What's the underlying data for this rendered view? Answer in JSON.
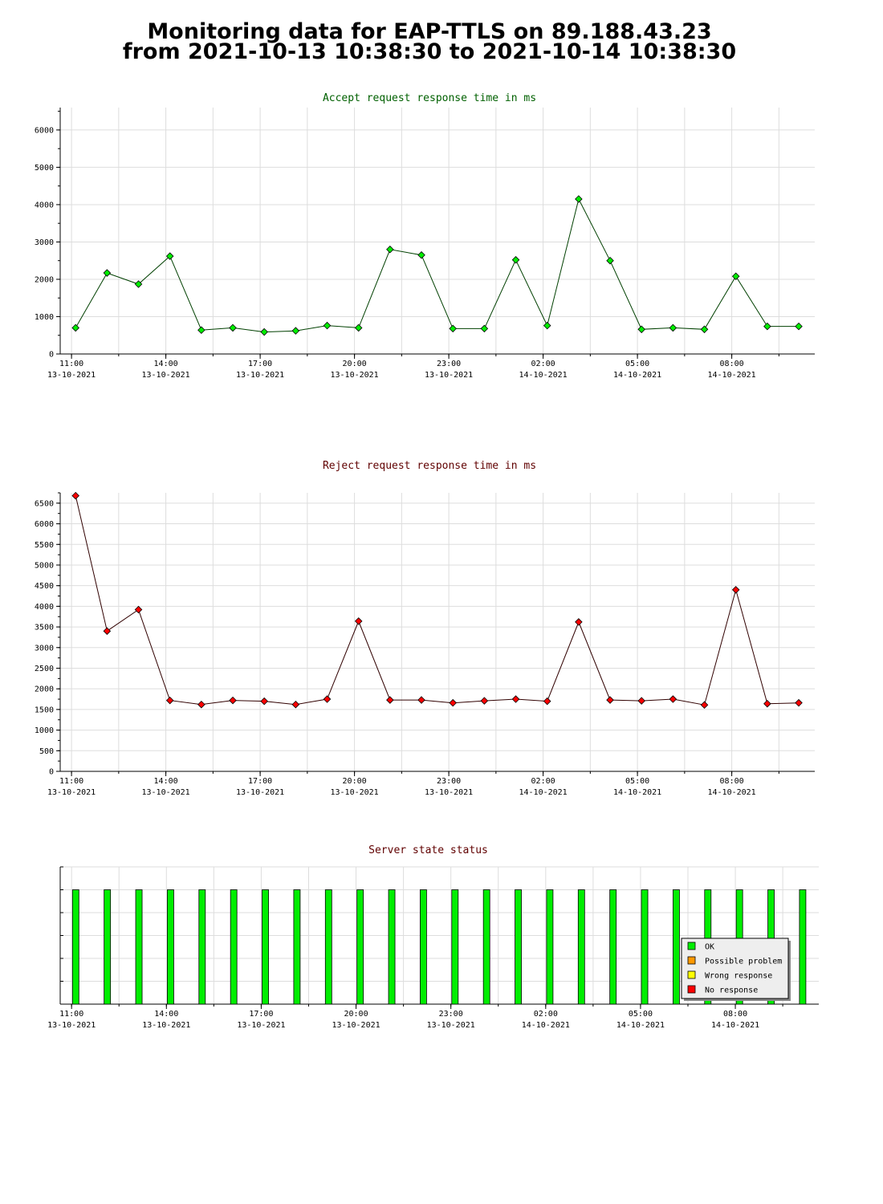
{
  "page": {
    "title_line1": "Monitoring data for EAP-TTLS on 89.188.43.23",
    "title_line2": "from 2021-10-13 10:38:30 to 2021-10-14 10:38:30"
  },
  "colors": {
    "accept_title": "#006000",
    "accept_line": "#004000",
    "accept_marker": "#00ee00",
    "reject_title": "#600000",
    "reject_line": "#300000",
    "reject_marker": "#ff0000",
    "status_title": "#600000",
    "ok": "#00ee00",
    "possible_problem": "#ff9900",
    "wrong_response": "#ffff00",
    "no_response": "#ff0000",
    "grid": "#dddddd"
  },
  "x_axis_ticks": [
    {
      "t": 11,
      "time": "11:00",
      "date": "13-10-2021"
    },
    {
      "t": 14,
      "time": "14:00",
      "date": "13-10-2021"
    },
    {
      "t": 17,
      "time": "17:00",
      "date": "13-10-2021"
    },
    {
      "t": 20,
      "time": "20:00",
      "date": "13-10-2021"
    },
    {
      "t": 23,
      "time": "23:00",
      "date": "13-10-2021"
    },
    {
      "t": 26,
      "time": "02:00",
      "date": "14-10-2021"
    },
    {
      "t": 29,
      "time": "05:00",
      "date": "14-10-2021"
    },
    {
      "t": 32,
      "time": "08:00",
      "date": "14-10-2021"
    }
  ],
  "chart_data": [
    {
      "type": "line",
      "title": "Accept request response time in ms",
      "x_unit": "hours since 2021-10-13 00:00",
      "xlim": [
        10.64,
        34.64
      ],
      "ylim": [
        0,
        6600
      ],
      "yticks": [
        0,
        1000,
        2000,
        3000,
        4000,
        5000,
        6000
      ],
      "grid": true,
      "series": [
        {
          "x": [
            11.13,
            12.13,
            13.13,
            14.13,
            15.13,
            16.13,
            17.13,
            18.13,
            19.13,
            20.13,
            21.13,
            22.13,
            23.13,
            24.13,
            25.13,
            26.13,
            27.13,
            28.13,
            29.13,
            30.13,
            31.13,
            32.13,
            33.13,
            34.13
          ],
          "y": [
            700,
            2170,
            1870,
            2620,
            640,
            700,
            590,
            620,
            760,
            700,
            2800,
            2650,
            680,
            680,
            2520,
            760,
            4150,
            2500,
            660,
            700,
            660,
            2080,
            740,
            740
          ]
        }
      ]
    },
    {
      "type": "line",
      "title": "Reject request response time in ms",
      "x_unit": "hours since 2021-10-13 00:00",
      "xlim": [
        10.64,
        34.64
      ],
      "ylim": [
        0,
        6750
      ],
      "yticks": [
        0,
        500,
        1000,
        1500,
        2000,
        2500,
        3000,
        3500,
        4000,
        4500,
        5000,
        5500,
        6000,
        6500
      ],
      "grid": true,
      "series": [
        {
          "x": [
            11.13,
            12.13,
            13.13,
            14.13,
            15.13,
            16.13,
            17.13,
            18.13,
            19.13,
            20.13,
            21.13,
            22.13,
            23.13,
            24.13,
            25.13,
            26.13,
            27.13,
            28.13,
            29.13,
            30.13,
            31.13,
            32.13,
            33.13,
            34.13
          ],
          "y": [
            6680,
            3400,
            3920,
            1720,
            1620,
            1720,
            1700,
            1620,
            1750,
            3640,
            1730,
            1730,
            1660,
            1710,
            1750,
            1700,
            3620,
            1730,
            1710,
            1750,
            1610,
            4400,
            1640,
            1660
          ]
        }
      ]
    },
    {
      "type": "bar",
      "title": "Server state status",
      "x_unit": "hours since 2021-10-13 00:00",
      "xlim": [
        10.64,
        34.64
      ],
      "ylim": [
        0,
        6
      ],
      "grid": true,
      "x": [
        11.13,
        12.13,
        13.13,
        14.13,
        15.13,
        16.13,
        17.13,
        18.13,
        19.13,
        20.13,
        21.13,
        22.13,
        23.13,
        24.13,
        25.13,
        26.13,
        27.13,
        28.13,
        29.13,
        30.13,
        31.13,
        32.13,
        33.13,
        34.13
      ],
      "status": [
        "OK",
        "OK",
        "OK",
        "OK",
        "OK",
        "OK",
        "OK",
        "OK",
        "OK",
        "OK",
        "OK",
        "OK",
        "OK",
        "OK",
        "OK",
        "OK",
        "OK",
        "OK",
        "OK",
        "OK",
        "OK",
        "OK",
        "OK",
        "OK"
      ],
      "value": 5,
      "legend": {
        "placement": "bottom-right",
        "items": [
          {
            "label": "OK",
            "color": "#00ee00"
          },
          {
            "label": "Possible problem",
            "color": "#ff9900"
          },
          {
            "label": "Wrong response",
            "color": "#ffff00"
          },
          {
            "label": "No response",
            "color": "#ff0000"
          }
        ]
      }
    }
  ]
}
